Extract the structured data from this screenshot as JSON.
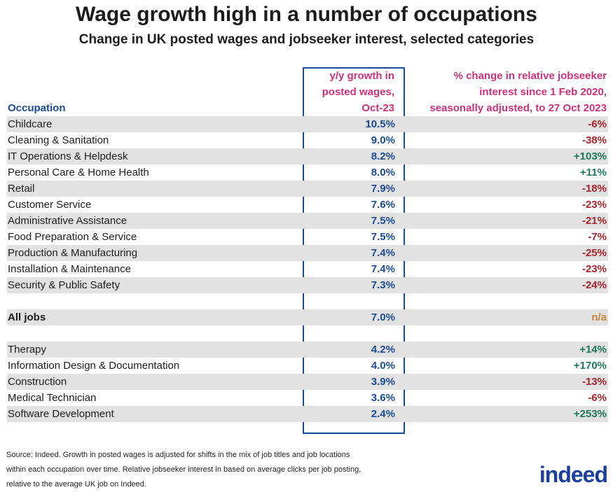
{
  "title": "Wage growth high in a number of occupations",
  "subtitle": "Change in UK posted wages and jobseeker interest, selected categories",
  "colors": {
    "positive": "#1a7a5a",
    "negative": "#b0222a",
    "na": "#c8873a",
    "header": "#d0307a",
    "accent": "#1a4b9a"
  },
  "chart_data": {
    "type": "table",
    "columns": [
      "Occupation",
      "y/y growth in posted wages, Oct-23",
      "% change in relative jobseeker interest since 1 Feb 2020, seasonally adjusted, to 27 Oct 2023"
    ],
    "header_lines": {
      "wage": [
        "y/y growth in",
        "posted wages,",
        "Oct-23"
      ],
      "interest": [
        "% change in relative jobseeker",
        "interest since 1 Feb 2020,",
        "seasonally adjusted, to 27 Oct 2023"
      ]
    },
    "rows": [
      {
        "occupation": "Childcare",
        "wage": "10.5%",
        "interest": "-6%"
      },
      {
        "occupation": "Cleaning & Sanitation",
        "wage": "9.0%",
        "interest": "-38%"
      },
      {
        "occupation": "IT Operations & Helpdesk",
        "wage": "8.2%",
        "interest": "+103%"
      },
      {
        "occupation": "Personal Care & Home Health",
        "wage": "8.0%",
        "interest": "+11%"
      },
      {
        "occupation": "Retail",
        "wage": "7.9%",
        "interest": "-18%"
      },
      {
        "occupation": "Customer Service",
        "wage": "7.6%",
        "interest": "-23%"
      },
      {
        "occupation": "Administrative Assistance",
        "wage": "7.5%",
        "interest": "-21%"
      },
      {
        "occupation": "Food Preparation & Service",
        "wage": "7.5%",
        "interest": "-7%"
      },
      {
        "occupation": "Production & Manufacturing",
        "wage": "7.4%",
        "interest": "-25%"
      },
      {
        "occupation": "Installation & Maintenance",
        "wage": "7.4%",
        "interest": "-23%"
      },
      {
        "occupation": "Security & Public Safety",
        "wage": "7.3%",
        "interest": "-24%"
      },
      null,
      {
        "occupation": "All jobs",
        "wage": "7.0%",
        "interest": "n/a",
        "bold": true
      },
      null,
      {
        "occupation": "Therapy",
        "wage": "4.2%",
        "interest": "+14%"
      },
      {
        "occupation": "Information Design & Documentation",
        "wage": "4.0%",
        "interest": "+170%"
      },
      {
        "occupation": "Construction",
        "wage": "3.9%",
        "interest": "-13%"
      },
      {
        "occupation": "Medical Technician",
        "wage": "3.6%",
        "interest": "-6%"
      },
      {
        "occupation": "Software Development",
        "wage": "2.4%",
        "interest": "+253%"
      }
    ]
  },
  "source": [
    "Source: Indeed. Growth in posted wages is adjusted for shifts in the mix of job titles and job locations",
    "within each occupation over time. Relative jobseeker interest in based on average clicks per job posting,",
    "relative to the average UK job on Indeed."
  ],
  "logo": "indeed"
}
